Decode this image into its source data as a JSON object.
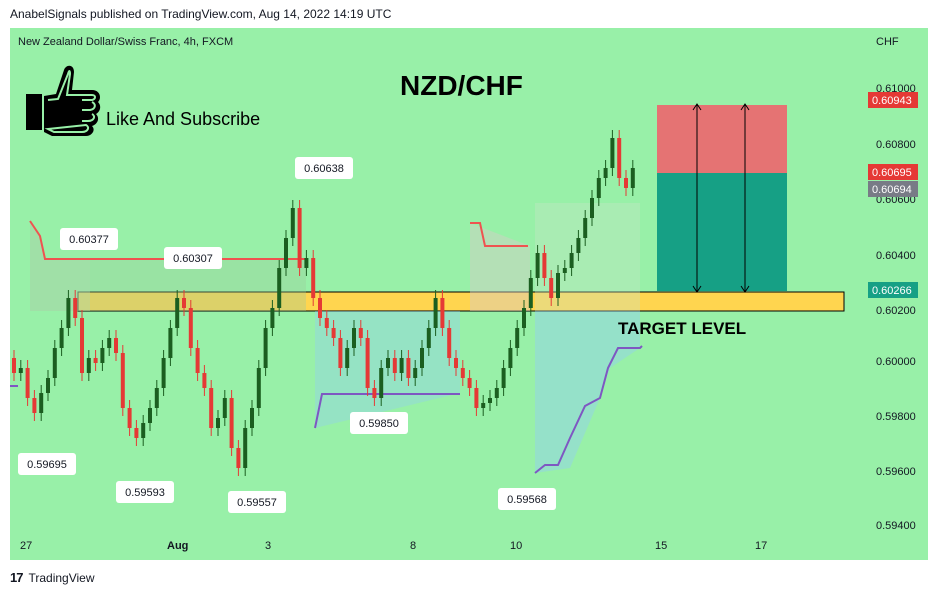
{
  "header": {
    "published": "AnabelSignals published on TradingView.com, Aug 14, 2022 14:19 UTC"
  },
  "chart": {
    "symbol_line": "New Zealand Dollar/Swiss Franc, 4h, FXCM",
    "currency": "CHF",
    "big_title": "NZD/CHF",
    "promo": "Like And Subscribe",
    "target_label": "TARGET LEVEL"
  },
  "footer": {
    "brand": "TradingView"
  },
  "colors": {
    "background": "#98f0a8",
    "bull": "#1b5e20",
    "bear": "#e53935",
    "target_zone": "#ffd54f",
    "stop_zone": "#e57373",
    "profit_zone": "#16a085"
  },
  "chart_data": {
    "type": "candlestick",
    "y_axis": {
      "ticks": [
        "0.61000",
        "0.60800",
        "0.60600",
        "0.60400",
        "0.60200",
        "0.60000",
        "0.59800",
        "0.59600",
        "0.59400"
      ],
      "range": [
        0.593,
        0.611
      ]
    },
    "x_axis": {
      "ticks": [
        "27",
        "Aug",
        "3",
        "8",
        "10",
        "15",
        "17"
      ]
    },
    "price_labels": [
      {
        "value": "0.60943",
        "color": "#e53935"
      },
      {
        "value": "0.60695",
        "color": "#e53935"
      },
      {
        "value": "0.60694",
        "color": "#787b86"
      },
      {
        "value": "0.60266",
        "color": "#16a085"
      }
    ],
    "annotations": [
      "0.60377",
      "0.60307",
      "0.60638",
      "0.59695",
      "0.59593",
      "0.59557",
      "0.59850",
      "0.59568"
    ],
    "target_zone": [
      0.6018,
      0.6026
    ],
    "trade": {
      "entry": 0.60266,
      "stop": 0.60943,
      "take_profit": 0.60694
    }
  }
}
